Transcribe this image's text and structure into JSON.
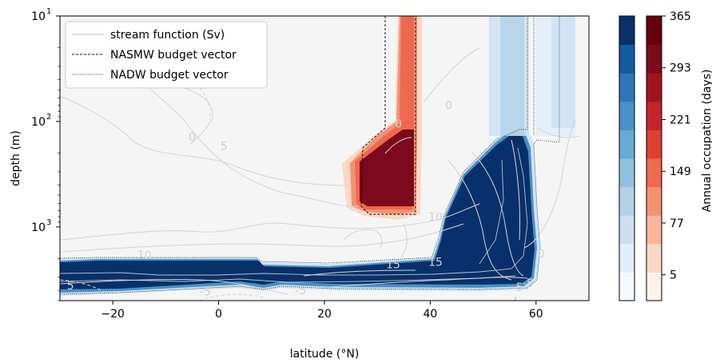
{
  "chart_data": {
    "type": "contour",
    "xlabel": "latitude (°N)",
    "ylabel": "depth (m)",
    "xlim": [
      -30,
      70
    ],
    "ylim_depth_m": [
      5000,
      10
    ],
    "y_scale": "log",
    "x_ticks": [
      -20,
      0,
      20,
      40,
      60
    ],
    "x_tick_labels": [
      "−20",
      "0",
      "20",
      "40",
      "60"
    ],
    "y_ticks": [
      10,
      100,
      1000
    ],
    "y_tick_bases": [
      "10",
      "10",
      "10"
    ],
    "y_tick_exponents": [
      "1",
      "2",
      "3"
    ],
    "legend": {
      "placement": "top-left",
      "entries": [
        {
          "label": "stream function (Sv)",
          "style": "solid",
          "color": "#cfcfcf"
        },
        {
          "label": "NASMW budget vector",
          "style": "dashed",
          "color": "#000000"
        },
        {
          "label": "NADW budget vector",
          "style": "dotted",
          "color": "#000000"
        }
      ]
    },
    "contour_labels": [
      {
        "text": "0",
        "lat": -5,
        "depth": 140
      },
      {
        "text": "5",
        "lat": 1,
        "depth": 170
      },
      {
        "text": "0",
        "lat": 34,
        "depth": 105
      },
      {
        "text": "0",
        "lat": 43.5,
        "depth": 70
      },
      {
        "text": "10",
        "lat": 41,
        "depth": 800
      },
      {
        "text": "15",
        "lat": 33,
        "depth": 2250
      },
      {
        "text": "15",
        "lat": 41,
        "depth": 2150
      },
      {
        "text": "10",
        "lat": -14,
        "depth": 1850
      },
      {
        "text": "5",
        "lat": -28,
        "depth": 3600
      },
      {
        "text": "-5",
        "lat": -2.5,
        "depth": 4100
      },
      {
        "text": "-5",
        "lat": 15.5,
        "depth": 4000
      },
      {
        "text": "-5",
        "lat": 56.5,
        "depth": 3700
      },
      {
        "text": "-5",
        "lat": 58.5,
        "depth": 3400
      },
      {
        "text": "0",
        "lat": 61,
        "depth": 1800
      }
    ],
    "colorbar_occupation": {
      "label": "Annual occupation (days)",
      "ticks": [
        "5",
        "77",
        "149",
        "221",
        "293",
        "365"
      ],
      "levels": 10,
      "colors": [
        "#fef1ea",
        "#fcd8c6",
        "#fab59a",
        "#f59171",
        "#ee6950",
        "#de3f33",
        "#c3252b",
        "#a21320",
        "#7c0a1b",
        "#67000d"
      ]
    },
    "colorbar_nadw": {
      "levels": 10,
      "colors": [
        "#f5f9fe",
        "#e2eef9",
        "#cde0f2",
        "#b2d2e8",
        "#8fc2de",
        "#66abd4",
        "#4792c6",
        "#2d76b7",
        "#155ba0",
        "#08306b"
      ]
    },
    "background_color": "#f5f5f5"
  }
}
